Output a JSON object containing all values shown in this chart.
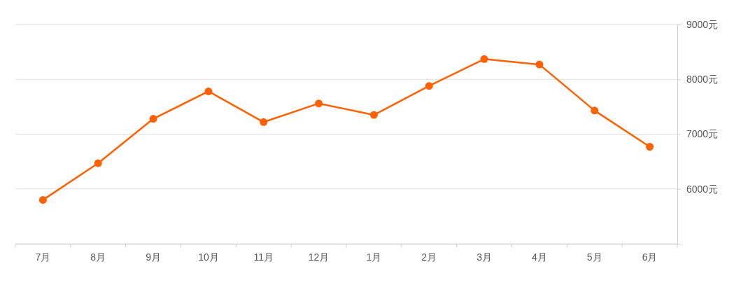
{
  "chart_data": {
    "type": "line",
    "categories": [
      "7月",
      "8月",
      "9月",
      "10月",
      "11月",
      "12月",
      "1月",
      "2月",
      "3月",
      "4月",
      "5月",
      "6月"
    ],
    "series": [
      {
        "color": "#ff6000",
        "values": [
          5800,
          6470,
          7280,
          7780,
          7220,
          7560,
          7350,
          7880,
          8370,
          8270,
          7430,
          6770
        ]
      }
    ],
    "ylim": [
      5000,
      9000
    ],
    "yticks": [
      {
        "value": 5000,
        "label": null
      },
      {
        "value": 6000,
        "label": "6000元"
      },
      {
        "value": 7000,
        "label": "7000元"
      },
      {
        "value": 8000,
        "label": "8000元"
      },
      {
        "value": 9000,
        "label": "9000元"
      }
    ],
    "grid": "y",
    "marker": "circle",
    "line_style": "solid"
  }
}
